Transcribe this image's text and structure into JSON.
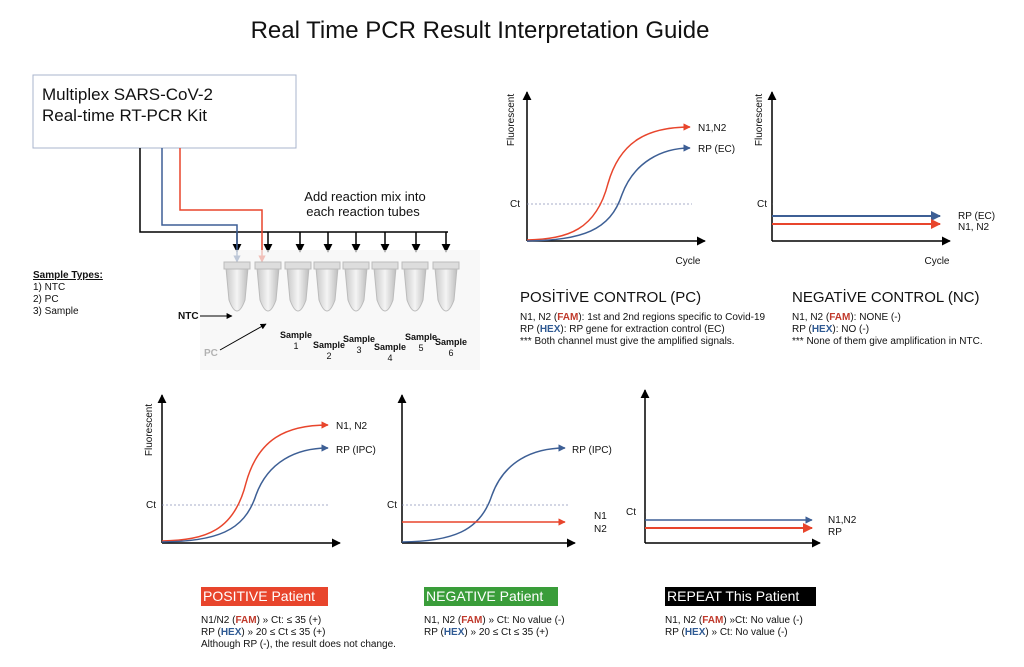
{
  "title": "Real Time PCR Result Interpretation Guide",
  "kit": {
    "lines": [
      "Multiplex SARS-CoV-2",
      "Real-time RT-PCR Kit"
    ]
  },
  "setup": {
    "instruction_lines": [
      "Add reaction mix into",
      "each reaction tubes"
    ],
    "sample_types": {
      "heading": "Sample Types:",
      "items": [
        "1) NTC",
        "2) PC",
        "3) Sample"
      ]
    },
    "tube_labels": [
      "NTC",
      "PC"
    ],
    "samples": [
      {
        "label": "Sample",
        "number": "1"
      },
      {
        "label": "Sample",
        "number": "2"
      },
      {
        "label": "Sample",
        "number": "3"
      },
      {
        "label": "Sample",
        "number": "4"
      },
      {
        "label": "Sample",
        "number": "5"
      },
      {
        "label": "Sample",
        "number": "6"
      }
    ]
  },
  "controls": [
    {
      "y_label": "Fluorescent",
      "x_label": "Cycle",
      "ct_label": "Ct",
      "curve_labels": [
        "N1,N2",
        "RP (EC)"
      ],
      "heading": "POSİTİVE CONTROL (PC)",
      "description": [
        [
          "N1, N2 (",
          "FAM",
          "): 1st and 2nd regions specific to Covid-19"
        ],
        [
          "RP (",
          "HEX",
          "): RP gene for extraction control (EC)"
        ],
        [
          "*** Both channel must give the amplified signals."
        ]
      ]
    },
    {
      "y_label": "Fluorescent",
      "x_label": "Cycle",
      "ct_label": "Ct",
      "curve_labels": [
        "RP (EC)",
        "N1, N2"
      ],
      "heading": "NEGATİVE CONTROL (NC)",
      "description": [
        [
          "N1, N2 (",
          "FAM",
          "): NONE (-)"
        ],
        [
          "RP (",
          "HEX",
          "): NO (-)"
        ],
        [
          "*** None of them give amplification in NTC."
        ]
      ]
    }
  ],
  "patients": [
    {
      "y_label": "Fluorescent",
      "ct_label": "Ct",
      "curve_labels": [
        "N1, N2",
        "RP (IPC)"
      ],
      "badge": "POSITIVE Patient",
      "description": [
        [
          "N1/N2 (",
          "FAM",
          ") » Ct: ≤ 35 (+)"
        ],
        [
          "RP (",
          "HEX",
          ") » 20 ≤ Ct ≤ 35 (+)"
        ],
        [
          "Although RP (-), the result does not change."
        ]
      ]
    },
    {
      "ct_label": "Ct",
      "curve_labels": [
        "RP (IPC)",
        "N1",
        "N2"
      ],
      "badge": "NEGATIVE Patient",
      "description": [
        [
          "N1, N2 (",
          "FAM",
          ") » Ct: No value (-)"
        ],
        [
          "RP (",
          "HEX",
          ") » 20 ≤ Ct ≤ 35 (+)"
        ]
      ]
    },
    {
      "ct_label": "Ct",
      "curve_labels": [
        "N1,N2",
        "RP"
      ],
      "badge": "REPEAT This Patient",
      "description": [
        [
          "N1, N2 (",
          "FAM",
          ") »Ct: No value  (-)"
        ],
        [
          "RP (",
          "HEX",
          ") » Ct: No value (-)"
        ]
      ]
    }
  ]
}
